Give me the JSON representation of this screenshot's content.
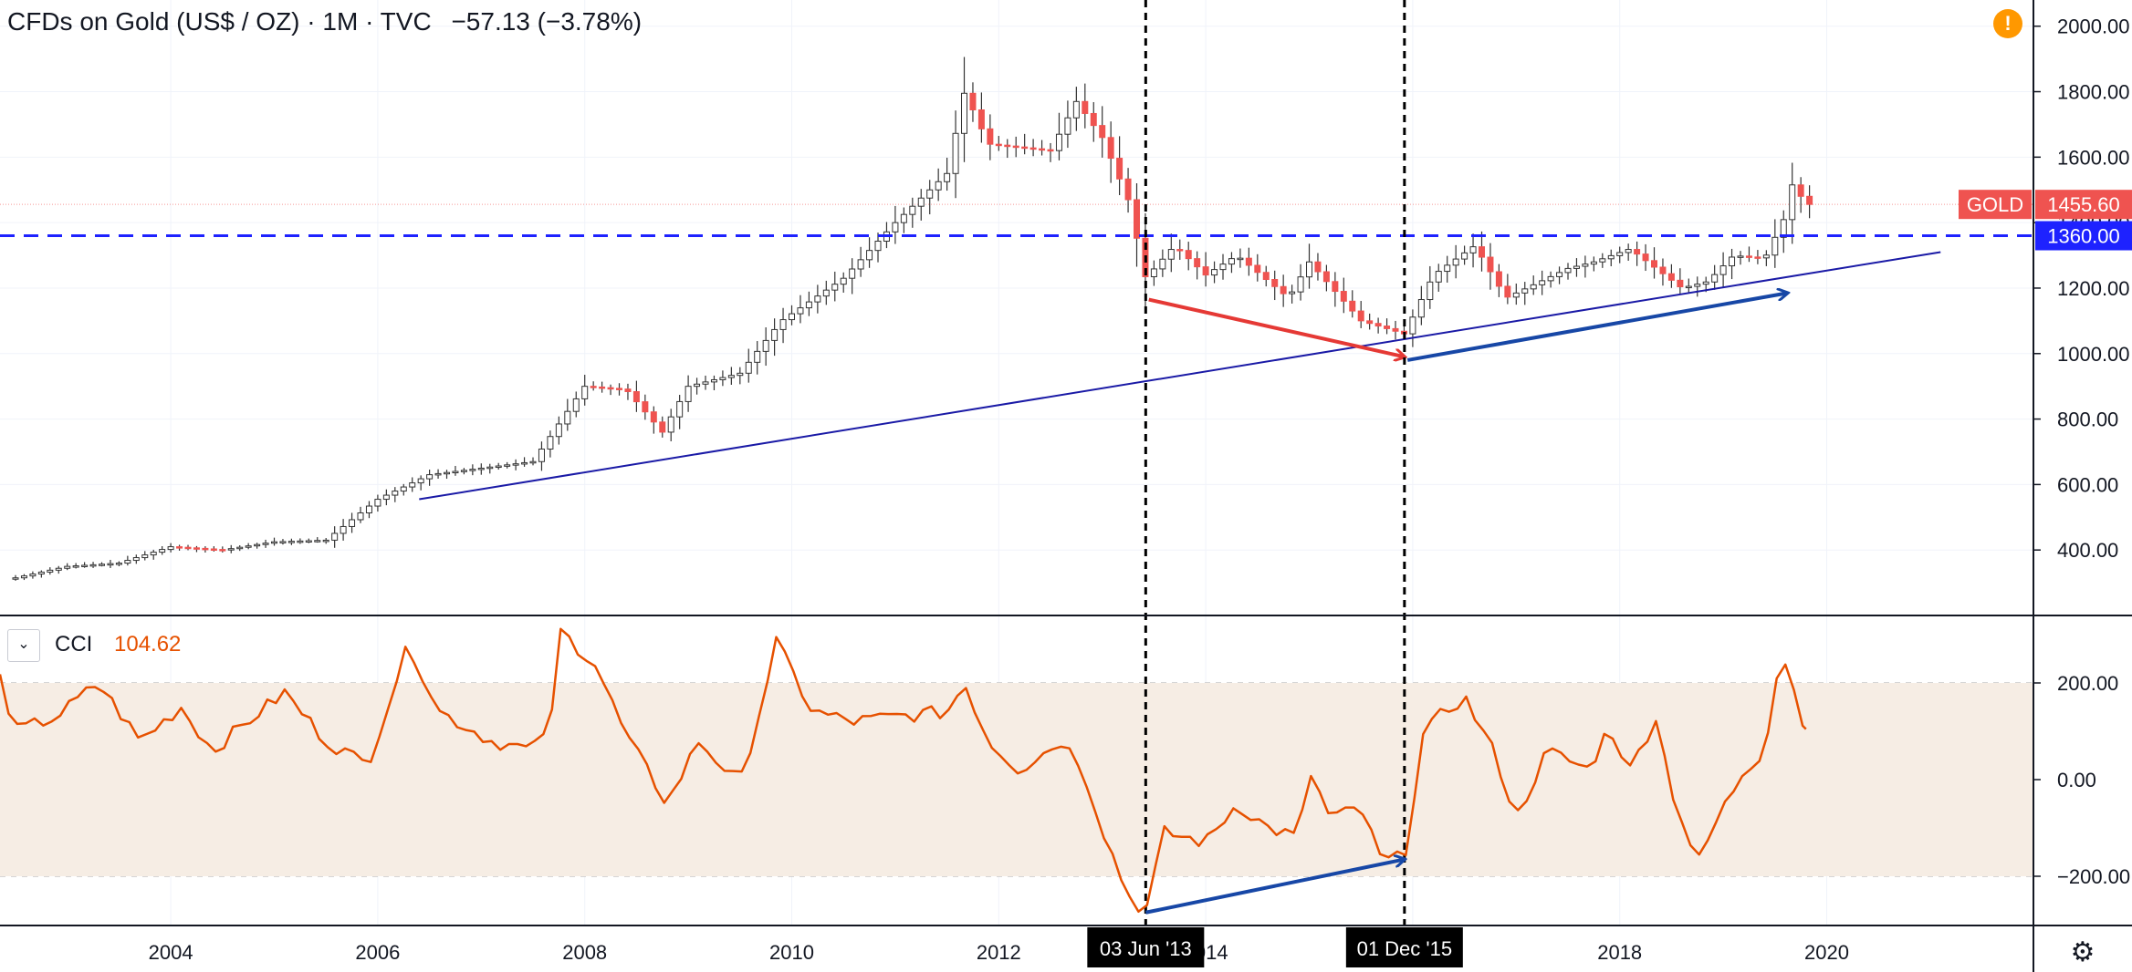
{
  "header": {
    "title": "CFDs on Gold (US$ / OZ) · 1M · TVC",
    "change": "−57.13 (−3.78%)",
    "alert_symbol": "!"
  },
  "indicator": {
    "toggle_symbol": "⌄",
    "name": "CCI",
    "value": "104.62"
  },
  "colors": {
    "up": "#26a69a",
    "down": "#ef5350",
    "candle_up_fill": "#ffffff",
    "trend": "#1a1aa6",
    "hline": "#1e22ff",
    "cci_line": "#e65100",
    "red_arrow": "#e53935",
    "blue_arrow": "#1747a6",
    "band": "#f6ede4"
  },
  "axis": {
    "gear_symbol": "⚙",
    "price_ticks": [
      "400.00",
      "600.00",
      "800.00",
      "1000.00",
      "1200.00",
      "1400.00",
      "1600.00",
      "1800.00",
      "2000.00"
    ],
    "cci_ticks": [
      "200.00",
      "0.00",
      "−200.00"
    ],
    "year_ticks": [
      {
        "label": "2004",
        "year": 2004
      },
      {
        "label": "2006",
        "year": 2006
      },
      {
        "label": "2008",
        "year": 2008
      },
      {
        "label": "2010",
        "year": 2010
      },
      {
        "label": "2012",
        "year": 2012
      },
      {
        "label": "2014",
        "year": 2014
      },
      {
        "label": "2016",
        "year": 2016
      },
      {
        "label": "2018",
        "year": 2018
      },
      {
        "label": "2020",
        "year": 2020
      }
    ]
  },
  "price_labels": {
    "symbol": "GOLD",
    "last": "1455.60",
    "level": "1360.00"
  },
  "markers": [
    {
      "label": "03 Jun '13",
      "year": 2013.42
    },
    {
      "label": "01 Dec '15",
      "year": 2015.92
    }
  ],
  "chart_data": {
    "type": "candlestick",
    "title": "CFDs on Gold (US$ / OZ) · 1M · TVC",
    "interval": "1M",
    "x_range": [
      2002.35,
      2021.8
    ],
    "price_range": [
      200,
      2080
    ],
    "cci_range": [
      -300,
      320
    ],
    "last_price": 1455.6,
    "horizontal_level": 1360.0,
    "cci_last": 104.62,
    "monthly_close_anchors": [
      [
        2002.5,
        315
      ],
      [
        2003.0,
        350
      ],
      [
        2003.5,
        360
      ],
      [
        2004.0,
        410
      ],
      [
        2004.5,
        400
      ],
      [
        2005.0,
        425
      ],
      [
        2005.5,
        430
      ],
      [
        2006.0,
        555
      ],
      [
        2006.5,
        630
      ],
      [
        2007.0,
        650
      ],
      [
        2007.5,
        670
      ],
      [
        2008.0,
        900
      ],
      [
        2008.4,
        890
      ],
      [
        2008.75,
        760
      ],
      [
        2009.0,
        900
      ],
      [
        2009.5,
        940
      ],
      [
        2009.9,
        1100
      ],
      [
        2010.5,
        1230
      ],
      [
        2011.0,
        1400
      ],
      [
        2011.5,
        1550
      ],
      [
        2011.67,
        1800
      ],
      [
        2011.9,
        1640
      ],
      [
        2012.5,
        1620
      ],
      [
        2012.75,
        1770
      ],
      [
        2013.0,
        1660
      ],
      [
        2013.25,
        1470
      ],
      [
        2013.42,
        1230
      ],
      [
        2013.7,
        1330
      ],
      [
        2014.0,
        1240
      ],
      [
        2014.3,
        1300
      ],
      [
        2014.8,
        1170
      ],
      [
        2015.0,
        1280
      ],
      [
        2015.5,
        1100
      ],
      [
        2015.92,
        1060
      ],
      [
        2016.2,
        1240
      ],
      [
        2016.6,
        1330
      ],
      [
        2016.9,
        1170
      ],
      [
        2017.5,
        1260
      ],
      [
        2017.75,
        1280
      ],
      [
        2018.1,
        1320
      ],
      [
        2018.6,
        1200
      ],
      [
        2018.85,
        1220
      ],
      [
        2019.1,
        1300
      ],
      [
        2019.4,
        1290
      ],
      [
        2019.6,
        1420
      ],
      [
        2019.67,
        1520
      ],
      [
        2019.8,
        1455.6
      ]
    ],
    "cci_anchors": [
      [
        2002.35,
        210
      ],
      [
        2002.5,
        100
      ],
      [
        2002.9,
        130
      ],
      [
        2003.3,
        200
      ],
      [
        2003.7,
        80
      ],
      [
        2004.1,
        150
      ],
      [
        2004.4,
        60
      ],
      [
        2004.8,
        130
      ],
      [
        2005.1,
        180
      ],
      [
        2005.5,
        80
      ],
      [
        2005.9,
        30
      ],
      [
        2006.2,
        220
      ],
      [
        2006.3,
        280
      ],
      [
        2006.6,
        140
      ],
      [
        2007.1,
        80
      ],
      [
        2007.5,
        60
      ],
      [
        2007.7,
        140
      ],
      [
        2007.75,
        310
      ],
      [
        2008.1,
        240
      ],
      [
        2008.4,
        90
      ],
      [
        2008.8,
        -50
      ],
      [
        2009.1,
        80
      ],
      [
        2009.5,
        -10
      ],
      [
        2009.7,
        150
      ],
      [
        2009.85,
        285
      ],
      [
        2010.2,
        140
      ],
      [
        2010.6,
        120
      ],
      [
        2011.0,
        130
      ],
      [
        2011.5,
        140
      ],
      [
        2011.67,
        200
      ],
      [
        2011.9,
        80
      ],
      [
        2012.2,
        20
      ],
      [
        2012.6,
        80
      ],
      [
        2012.8,
        30
      ],
      [
        2013.0,
        -100
      ],
      [
        2013.25,
        -240
      ],
      [
        2013.42,
        -275
      ],
      [
        2013.6,
        -110
      ],
      [
        2014.0,
        -130
      ],
      [
        2014.3,
        -50
      ],
      [
        2014.6,
        -100
      ],
      [
        2014.9,
        -120
      ],
      [
        2015.0,
        20
      ],
      [
        2015.2,
        -80
      ],
      [
        2015.5,
        -60
      ],
      [
        2015.7,
        -170
      ],
      [
        2015.92,
        -160
      ],
      [
        2016.1,
        90
      ],
      [
        2016.3,
        140
      ],
      [
        2016.5,
        170
      ],
      [
        2016.8,
        50
      ],
      [
        2017.0,
        -80
      ],
      [
        2017.3,
        60
      ],
      [
        2017.7,
        20
      ],
      [
        2017.9,
        110
      ],
      [
        2018.1,
        20
      ],
      [
        2018.35,
        130
      ],
      [
        2018.5,
        -20
      ],
      [
        2018.75,
        -175
      ],
      [
        2018.95,
        -80
      ],
      [
        2019.2,
        20
      ],
      [
        2019.4,
        60
      ],
      [
        2019.5,
        200
      ],
      [
        2019.58,
        260
      ],
      [
        2019.7,
        170
      ],
      [
        2019.8,
        104.62
      ]
    ],
    "trendlines": [
      {
        "from": [
          2006.4,
          555
        ],
        "to": [
          2021.1,
          1310
        ],
        "color": "trend"
      },
      {
        "from": [
          2013.42,
          -275
        ],
        "to": [
          2015.92,
          -165
        ],
        "color": "blue_arrow",
        "arrow": true
      }
    ],
    "arrows": [
      {
        "from": [
          2013.45,
          1165
        ],
        "to": [
          2015.92,
          990
        ],
        "color": "red_arrow"
      },
      {
        "from": [
          2015.95,
          980
        ],
        "to": [
          2019.62,
          1185
        ],
        "color": "blue_arrow"
      }
    ]
  }
}
